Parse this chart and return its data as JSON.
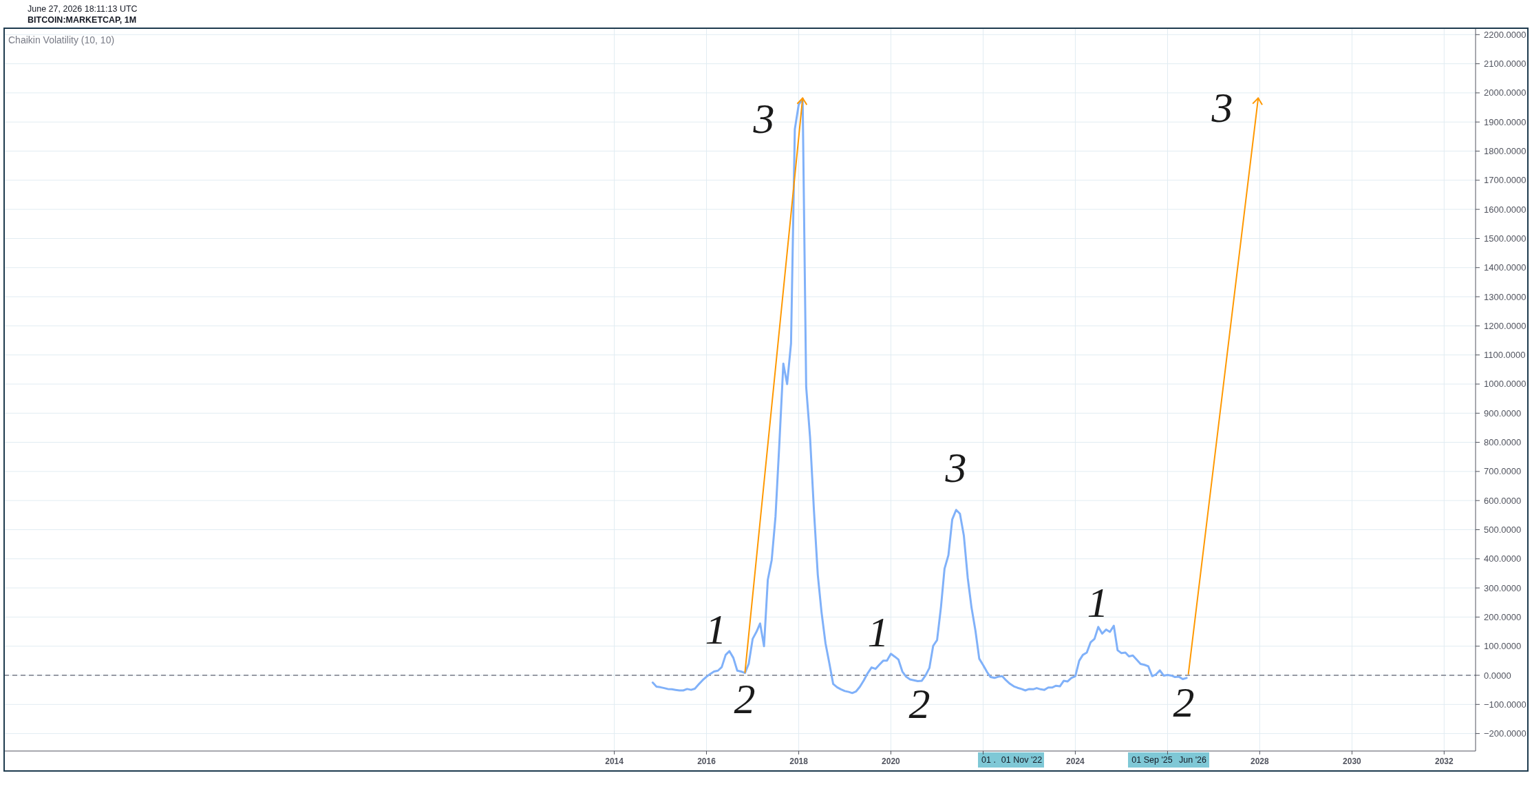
{
  "chart_data": {
    "type": "line",
    "title": "BITCOIN:MARKETCAP, 1M",
    "subtitle": "June 27, 2026 18:11:13 UTC",
    "annotations": [
      "Chaikin Volatility (10, 10)",
      "1",
      "2",
      "3",
      "1",
      "2",
      "3",
      "1",
      "2",
      "3",
      "01 .",
      "01 Nov '22",
      "01 Sep '25",
      "Jun '26"
    ],
    "xlim": [
      "2000-10-07",
      "2032-09-06"
    ],
    "xticks": [
      "2014",
      "2016",
      "2018",
      "2020",
      {
        "value": "2022",
        "label": null
      },
      "2024",
      {
        "value": "2026",
        "label": null
      },
      "2028",
      "2030",
      "2032"
    ],
    "ylim": [
      -260,
      2222
    ],
    "yticks": [
      {
        "value": -200,
        "label": "−200.0000"
      },
      {
        "value": -100,
        "label": "−100.0000"
      },
      {
        "value": 0,
        "label": "0.0000"
      },
      {
        "value": 100,
        "label": "100.0000"
      },
      {
        "value": 200,
        "label": "200.0000"
      },
      {
        "value": 300,
        "label": "300.0000"
      },
      {
        "value": 400,
        "label": "400.0000"
      },
      {
        "value": 500,
        "label": "500.0000"
      },
      {
        "value": 600,
        "label": "600.0000"
      },
      {
        "value": 700,
        "label": "700.0000"
      },
      {
        "value": 800,
        "label": "800.0000"
      },
      {
        "value": 900,
        "label": "900.0000"
      },
      {
        "value": 1000,
        "label": "1000.0000"
      },
      {
        "value": 1100,
        "label": "1100.0000"
      },
      {
        "value": 1200,
        "label": "1200.0000"
      },
      {
        "value": 1300,
        "label": "1300.0000"
      },
      {
        "value": 1400,
        "label": "1400.0000"
      },
      {
        "value": 1500,
        "label": "1500.0000"
      },
      {
        "value": 1600,
        "label": "1600.0000"
      },
      {
        "value": 1700,
        "label": "1700.0000"
      },
      {
        "value": 1800,
        "label": "1800.0000"
      },
      {
        "value": 1900,
        "label": "1900.0000"
      },
      {
        "value": 2000,
        "label": "2000.0000"
      },
      {
        "value": 2100,
        "label": "2100.0000"
      },
      {
        "value": 2200,
        "label": "2200.0000"
      }
    ],
    "grid": true,
    "ref_lines": [
      {
        "axis": "y",
        "value": 0,
        "color": "#787b86",
        "line_style": "dashed"
      }
    ],
    "series": [
      {
        "color": "#80b1f9",
        "x": [
          "2014-11",
          "2014-12",
          "2015-01",
          "2015-02",
          "2015-03",
          "2015-04",
          "2015-05",
          "2015-06",
          "2015-07",
          "2015-08",
          "2015-09",
          "2015-10",
          "2015-11",
          "2015-12",
          "2016-01",
          "2016-02",
          "2016-03",
          "2016-04",
          "2016-05",
          "2016-06",
          "2016-07",
          "2016-08",
          "2016-09",
          "2016-10",
          "2016-11",
          "2016-12",
          "2017-01",
          "2017-02",
          "2017-03",
          "2017-04",
          "2017-05",
          "2017-06",
          "2017-07",
          "2017-08",
          "2017-09",
          "2017-10",
          "2017-11",
          "2017-12",
          "2018-01",
          "2018-02",
          "2018-03",
          "2018-04",
          "2018-05",
          "2018-06",
          "2018-07",
          "2018-08",
          "2018-09",
          "2018-10",
          "2018-11",
          "2018-12",
          "2019-01",
          "2019-02",
          "2019-03",
          "2019-04",
          "2019-05",
          "2019-06",
          "2019-07",
          "2019-08",
          "2019-09",
          "2019-10",
          "2019-11",
          "2019-12",
          "2020-01",
          "2020-02",
          "2020-03",
          "2020-04",
          "2020-05",
          "2020-06",
          "2020-07",
          "2020-08",
          "2020-09",
          "2020-10",
          "2020-11",
          "2020-12",
          "2021-01",
          "2021-02",
          "2021-03",
          "2021-04",
          "2021-05",
          "2021-06",
          "2021-07",
          "2021-08",
          "2021-09",
          "2021-10",
          "2021-11",
          "2021-12",
          "2022-01",
          "2022-02",
          "2022-03",
          "2022-04",
          "2022-05",
          "2022-06",
          "2022-07",
          "2022-08",
          "2022-09",
          "2022-10",
          "2022-11",
          "2022-12",
          "2023-01",
          "2023-02",
          "2023-03",
          "2023-04",
          "2023-05",
          "2023-06",
          "2023-07",
          "2023-08",
          "2023-09",
          "2023-10",
          "2023-11",
          "2023-12",
          "2024-01",
          "2024-02",
          "2024-03",
          "2024-04",
          "2024-05",
          "2024-06",
          "2024-07",
          "2024-08",
          "2024-09",
          "2024-10",
          "2024-11",
          "2024-12",
          "2025-01",
          "2025-02",
          "2025-03",
          "2025-04",
          "2025-05",
          "2025-06",
          "2025-07",
          "2025-08",
          "2025-09",
          "2025-10",
          "2025-11",
          "2025-12",
          "2026-01",
          "2026-02",
          "2026-03",
          "2026-04",
          "2026-05",
          "2026-06"
        ],
        "values": [
          -25,
          -39,
          -41,
          -44,
          -47,
          -48,
          -50,
          -52,
          -52,
          -47,
          -50,
          -46,
          -31,
          -17,
          -5,
          5,
          13,
          16,
          28,
          70,
          83,
          60,
          16,
          13,
          8,
          40,
          125,
          150,
          178,
          100,
          328,
          396,
          545,
          800,
          1070,
          1000,
          1140,
          1875,
          1960,
          1980,
          990,
          815,
          570,
          345,
          215,
          110,
          40,
          -30,
          -41,
          -48,
          -54,
          -57,
          -61,
          -55,
          -39,
          -17,
          7,
          27,
          22,
          36,
          50,
          50,
          74,
          64,
          54,
          13,
          -5,
          -14,
          -17,
          -20,
          -19,
          -1,
          25,
          101,
          121,
          235,
          366,
          413,
          535,
          568,
          555,
          480,
          334,
          232,
          153,
          57,
          35,
          11,
          -6,
          -9,
          -5,
          -3,
          -17,
          -29,
          -38,
          -43,
          -47,
          -52,
          -47,
          -48,
          -44,
          -48,
          -50,
          -42,
          -42,
          -36,
          -38,
          -19,
          -21,
          -9,
          -3,
          50,
          70,
          78,
          113,
          125,
          166,
          143,
          157,
          149,
          170,
          86,
          76,
          78,
          65,
          68,
          54,
          39,
          36,
          31,
          -3,
          3,
          17,
          -1,
          1,
          -1,
          -6,
          -5,
          -13,
          -9
        ]
      },
      {
        "color": "#ff9800",
        "x": [
          "2016-11",
          "2018-02"
        ],
        "values": [
          10,
          1982
        ]
      },
      {
        "color": "#ff9800",
        "x": [
          "2026-06-15",
          "2027-12-20"
        ],
        "values": [
          5,
          1982
        ]
      }
    ]
  }
}
